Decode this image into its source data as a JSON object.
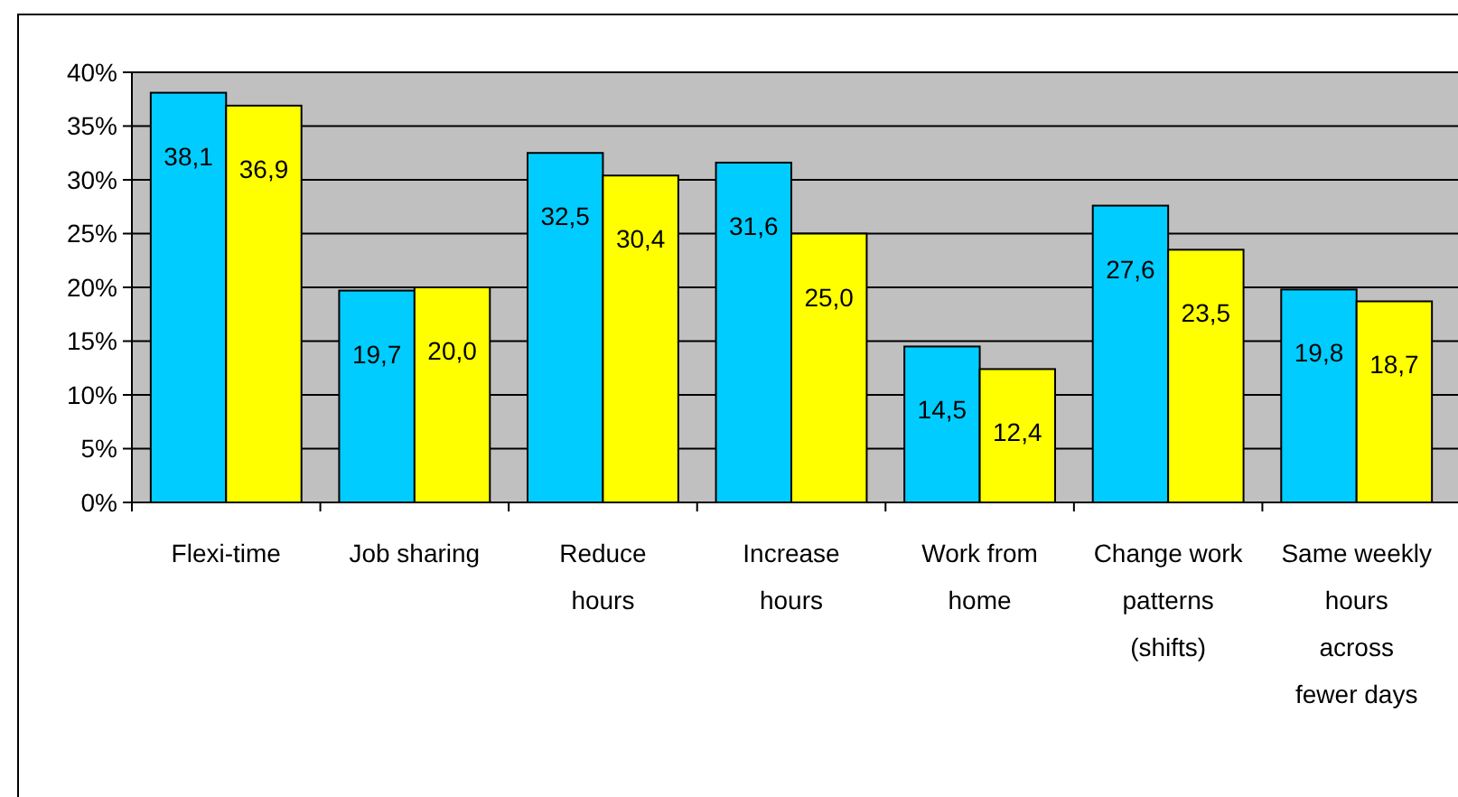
{
  "chart_data": {
    "type": "bar",
    "categories": [
      "Flexi-time",
      "Job sharing",
      "Reduce hours",
      "Increase hours",
      "Work from home",
      "Change work patterns (shifts)",
      "Same weekly hours across fewer days"
    ],
    "series": [
      {
        "color": "#00ccff",
        "values": [
          38.1,
          19.7,
          32.5,
          31.6,
          14.5,
          27.6,
          19.8
        ],
        "value_labels": [
          "38,1",
          "19,7",
          "32,5",
          "31,6",
          "14,5",
          "27,6",
          "19,8"
        ]
      },
      {
        "color": "#ffff00",
        "values": [
          36.9,
          20.0,
          30.4,
          25.0,
          12.4,
          23.5,
          18.7
        ],
        "value_labels": [
          "36,9",
          "20,0",
          "30,4",
          "25,0",
          "12,4",
          "23,5",
          "18,7"
        ]
      }
    ],
    "ylim": [
      0,
      40
    ],
    "yticks": [
      {
        "value": 0,
        "label": "0%"
      },
      {
        "value": 5,
        "label": "5%"
      },
      {
        "value": 10,
        "label": "10%"
      },
      {
        "value": 15,
        "label": "15%"
      },
      {
        "value": 20,
        "label": "20%"
      },
      {
        "value": 25,
        "label": "25%"
      },
      {
        "value": 30,
        "label": "30%"
      },
      {
        "value": 35,
        "label": "35%"
      },
      {
        "value": 40,
        "label": "40%"
      }
    ],
    "grid": "y"
  }
}
